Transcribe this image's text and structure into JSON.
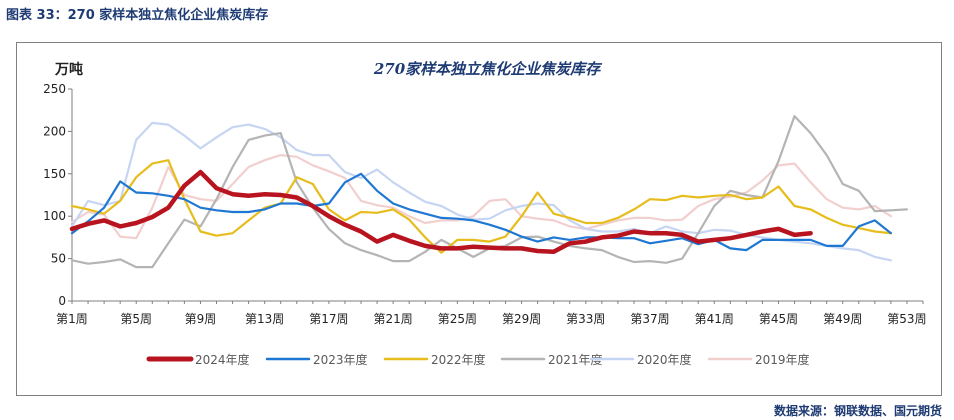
{
  "figure": {
    "caption": "图表 33：270 家样本独立焦化企业焦炭库存",
    "source": "数据来源：钢联数据、国元期货"
  },
  "chart_data": {
    "type": "line",
    "title": "270家样本独立焦化企业焦炭库存",
    "ylabel": "万吨",
    "ylim": [
      0,
      250
    ],
    "yticks": [
      0,
      50,
      100,
      150,
      200,
      250
    ],
    "xlim": [
      1,
      54
    ],
    "xticks": [
      1,
      5,
      9,
      13,
      17,
      21,
      25,
      29,
      33,
      37,
      41,
      45,
      49,
      53
    ],
    "xtick_labels": [
      "第1周",
      "第5周",
      "第9周",
      "第13周",
      "第17周",
      "第21周",
      "第25周",
      "第29周",
      "第33周",
      "第37周",
      "第41周",
      "第45周",
      "第49周",
      "第53周"
    ],
    "grid": false,
    "legend_position": "bottom",
    "series": [
      {
        "name": "2019年度",
        "color": "#f2cfcf",
        "x": [
          1,
          2,
          3,
          4,
          5,
          6,
          7,
          8,
          9,
          10,
          11,
          12,
          13,
          14,
          15,
          16,
          17,
          18,
          19,
          20,
          21,
          22,
          23,
          24,
          25,
          26,
          27,
          28,
          29,
          30,
          31,
          32,
          33,
          34,
          35,
          36,
          37,
          38,
          39,
          40,
          41,
          42,
          43,
          44,
          45,
          46,
          47,
          48,
          49,
          50,
          51,
          52
        ],
        "values": [
          93,
          105,
          102,
          76,
          74,
          110,
          158,
          125,
          120,
          118,
          138,
          158,
          166,
          172,
          170,
          160,
          153,
          145,
          118,
          113,
          110,
          100,
          92,
          95,
          95,
          100,
          118,
          120,
          100,
          97,
          95,
          88,
          85,
          90,
          95,
          98,
          98,
          95,
          96,
          112,
          120,
          123,
          128,
          142,
          160,
          162,
          140,
          120,
          110,
          108,
          112,
          100
        ]
      },
      {
        "name": "2020年度",
        "color": "#c6d5f2",
        "x": [
          1,
          2,
          3,
          4,
          5,
          6,
          7,
          8,
          9,
          10,
          11,
          12,
          13,
          14,
          15,
          16,
          17,
          18,
          19,
          20,
          21,
          22,
          23,
          24,
          25,
          26,
          27,
          28,
          29,
          30,
          31,
          32,
          33,
          34,
          35,
          36,
          37,
          38,
          39,
          40,
          41,
          42,
          43,
          44,
          45,
          46,
          47,
          48,
          49,
          50,
          51,
          52
        ],
        "values": [
          88,
          118,
          113,
          118,
          190,
          210,
          208,
          195,
          180,
          193,
          205,
          208,
          203,
          193,
          178,
          172,
          172,
          152,
          145,
          155,
          140,
          128,
          117,
          112,
          102,
          96,
          97,
          107,
          112,
          115,
          113,
          95,
          85,
          82,
          82,
          85,
          80,
          88,
          82,
          80,
          84,
          83,
          78,
          75,
          72,
          70,
          68,
          65,
          62,
          60,
          52,
          48
        ]
      },
      {
        "name": "2021年度",
        "color": "#b4b4b4",
        "x": [
          1,
          2,
          3,
          4,
          5,
          6,
          7,
          8,
          9,
          10,
          11,
          12,
          13,
          14,
          15,
          16,
          17,
          18,
          19,
          20,
          21,
          22,
          23,
          24,
          25,
          26,
          27,
          28,
          29,
          30,
          31,
          32,
          33,
          34,
          35,
          36,
          37,
          38,
          39,
          40,
          41,
          42,
          43,
          44,
          45,
          46,
          47,
          48,
          49,
          50,
          51,
          52,
          53
        ],
        "values": [
          48,
          44,
          46,
          49,
          40,
          40,
          68,
          96,
          88,
          120,
          158,
          190,
          195,
          198,
          140,
          110,
          85,
          68,
          60,
          54,
          47,
          47,
          58,
          72,
          62,
          52,
          62,
          65,
          75,
          76,
          70,
          65,
          62,
          60,
          52,
          46,
          47,
          45,
          50,
          80,
          112,
          130,
          125,
          122,
          165,
          218,
          198,
          172,
          138,
          130,
          106,
          107,
          108
        ]
      },
      {
        "name": "2022年度",
        "color": "#e6bd1c",
        "x": [
          1,
          2,
          3,
          4,
          5,
          6,
          7,
          8,
          9,
          10,
          11,
          12,
          13,
          14,
          15,
          16,
          17,
          18,
          19,
          20,
          21,
          22,
          23,
          24,
          25,
          26,
          27,
          28,
          29,
          30,
          31,
          32,
          33,
          34,
          35,
          36,
          37,
          38,
          39,
          40,
          41,
          42,
          43,
          44,
          45,
          46,
          47,
          48,
          49,
          50,
          51,
          52
        ],
        "values": [
          112,
          108,
          103,
          118,
          146,
          162,
          166,
          120,
          82,
          77,
          80,
          95,
          110,
          115,
          146,
          138,
          108,
          95,
          105,
          104,
          108,
          96,
          75,
          57,
          72,
          72,
          70,
          76,
          100,
          128,
          103,
          98,
          92,
          92,
          98,
          108,
          120,
          119,
          124,
          122,
          124,
          125,
          120,
          122,
          135,
          112,
          108,
          98,
          90,
          86,
          82,
          80
        ]
      },
      {
        "name": "2023年度",
        "color": "#1f77d4",
        "x": [
          1,
          2,
          3,
          4,
          5,
          6,
          7,
          8,
          9,
          10,
          11,
          12,
          13,
          14,
          15,
          16,
          17,
          18,
          19,
          20,
          21,
          22,
          23,
          24,
          25,
          26,
          27,
          28,
          29,
          30,
          31,
          32,
          33,
          34,
          35,
          36,
          37,
          38,
          39,
          40,
          41,
          42,
          43,
          44,
          45,
          46,
          47,
          48,
          49,
          50,
          51,
          52
        ],
        "values": [
          80,
          94,
          110,
          141,
          128,
          127,
          124,
          120,
          110,
          107,
          105,
          105,
          108,
          115,
          115,
          112,
          115,
          140,
          150,
          130,
          115,
          108,
          103,
          98,
          97,
          95,
          90,
          84,
          76,
          70,
          75,
          72,
          75,
          75,
          74,
          74,
          68,
          71,
          74,
          67,
          72,
          62,
          60,
          72,
          72,
          72,
          72,
          65,
          65,
          88,
          95,
          80
        ]
      },
      {
        "name": "2024年度",
        "color": "#b8141f",
        "x": [
          1,
          2,
          3,
          4,
          5,
          6,
          7,
          8,
          9,
          10,
          11,
          12,
          13,
          14,
          15,
          16,
          17,
          18,
          19,
          20,
          21,
          22,
          23,
          24,
          25,
          26,
          27,
          28,
          29,
          30,
          31,
          32,
          33,
          34,
          35,
          36,
          37,
          38,
          39,
          40,
          41,
          42,
          43,
          44,
          45,
          46,
          47
        ],
        "values": [
          85,
          91,
          95,
          88,
          92,
          99,
          110,
          136,
          152,
          133,
          126,
          124,
          126,
          125,
          122,
          112,
          100,
          90,
          82,
          70,
          78,
          71,
          65,
          62,
          62,
          64,
          63,
          62,
          62,
          59,
          58,
          68,
          70,
          75,
          77,
          82,
          80,
          80,
          78,
          70,
          72,
          74,
          78,
          82,
          85,
          78,
          80
        ]
      }
    ]
  }
}
